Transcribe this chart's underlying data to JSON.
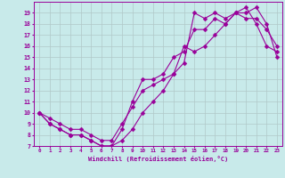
{
  "title": "",
  "xlabel": "Windchill (Refroidissement éolien,°C)",
  "ylabel": "",
  "bg_color": "#c8eaea",
  "line_color": "#990099",
  "grid_color": "#b0c8c8",
  "xlim": [
    -0.5,
    23.5
  ],
  "ylim": [
    7,
    20
  ],
  "xticks": [
    0,
    1,
    2,
    3,
    4,
    5,
    6,
    7,
    8,
    9,
    10,
    11,
    12,
    13,
    14,
    15,
    16,
    17,
    18,
    19,
    20,
    21,
    22,
    23
  ],
  "yticks": [
    7,
    8,
    9,
    10,
    11,
    12,
    13,
    14,
    15,
    16,
    17,
    18,
    19
  ],
  "curve1_x": [
    0,
    1,
    2,
    3,
    4,
    5,
    6,
    7,
    8,
    9,
    10,
    11,
    12,
    13,
    14,
    15,
    16,
    17,
    18,
    19,
    20,
    21,
    22,
    23
  ],
  "curve1_y": [
    10,
    9,
    8.5,
    8,
    8,
    7.5,
    7,
    7,
    8.5,
    11,
    13,
    13,
    13.5,
    15,
    15.5,
    17.5,
    17.5,
    18.5,
    18,
    19,
    19.5,
    18,
    16,
    15.5
  ],
  "curve2_x": [
    0,
    1,
    2,
    3,
    4,
    5,
    6,
    7,
    8,
    9,
    10,
    11,
    12,
    13,
    14,
    15,
    16,
    17,
    18,
    19,
    20,
    21,
    22,
    23
  ],
  "curve2_y": [
    10,
    9.5,
    9,
    8.5,
    8.5,
    8,
    7.5,
    7.5,
    9,
    10.5,
    12,
    12.5,
    13,
    13.5,
    14.5,
    19,
    18.5,
    19,
    18.5,
    19,
    18.5,
    18.5,
    17.5,
    16
  ],
  "curve3_x": [
    0,
    1,
    2,
    3,
    4,
    5,
    6,
    7,
    8,
    9,
    10,
    11,
    12,
    13,
    14,
    15,
    16,
    17,
    18,
    19,
    20,
    21,
    22,
    23
  ],
  "curve3_y": [
    10,
    9,
    8.5,
    8,
    8,
    7.5,
    7,
    7,
    7.5,
    8.5,
    10,
    11,
    12,
    13.5,
    16,
    15.5,
    16,
    17,
    18,
    19,
    19,
    19.5,
    18,
    15
  ]
}
